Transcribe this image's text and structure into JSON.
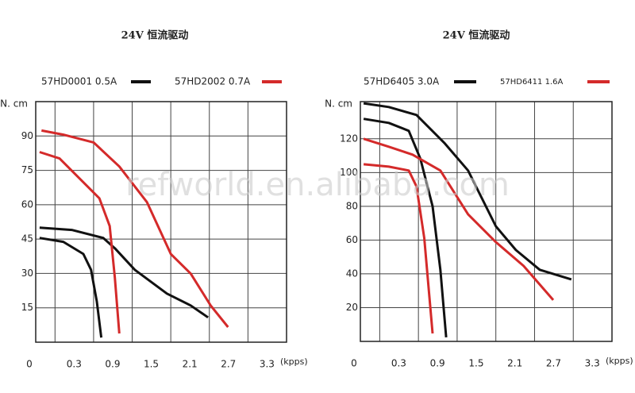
{
  "chart_data": [
    {
      "type": "line",
      "title": "24V 恒流驱动",
      "y_label": "N. cm",
      "x_label": "(kpps)",
      "xlim": [
        0,
        3.9
      ],
      "ylim": [
        0,
        105
      ],
      "xticks": [
        0,
        0.3,
        0.9,
        1.5,
        2.1,
        2.7,
        3.3
      ],
      "yticks": [
        15,
        30,
        45,
        60,
        75,
        90
      ],
      "grid": true,
      "series": [
        {
          "name": "57HD0001 0.5A",
          "color": "#111111",
          "lines": [
            {
              "x": [
                0.06,
                0.56,
                1.05,
                1.23,
                1.54,
                2.04,
                2.41,
                2.68
              ],
              "values": [
                50,
                49,
                45.5,
                41,
                31.6,
                21.2,
                16,
                10.8
              ]
            },
            {
              "x": [
                0.06,
                0.43,
                0.74,
                0.86,
                0.95,
                1.02
              ],
              "values": [
                45.5,
                43.8,
                38.5,
                31.6,
                17.7,
                2
              ]
            }
          ]
        },
        {
          "name": "57HD2002 0.7A",
          "color": "#d42a2a",
          "lines": [
            {
              "x": [
                0.09,
                0.43,
                0.9,
                1.3,
                1.73,
                2.1,
                2.41,
                2.72,
                2.99
              ],
              "values": [
                92.4,
                90.6,
                87.2,
                76.7,
                61.1,
                38.5,
                29.9,
                16,
                6.6
              ]
            },
            {
              "x": [
                0.06,
                0.37,
                0.68,
                0.99,
                1.15,
                1.23,
                1.3
              ],
              "values": [
                83,
                80.2,
                71.5,
                62.8,
                50.7,
                28.1,
                3.8
              ]
            }
          ]
        }
      ]
    },
    {
      "type": "line",
      "title": "24V 恒流驱动",
      "y_label": "N. cm",
      "x_label": "(kpps)",
      "xlim": [
        0,
        3.9
      ],
      "ylim": [
        0,
        142
      ],
      "xticks": [
        0,
        0.3,
        0.9,
        1.5,
        2.1,
        2.7,
        3.3
      ],
      "yticks": [
        20,
        40,
        60,
        80,
        100,
        120
      ],
      "grid": true,
      "series": [
        {
          "name": "57HD6405 3.0A",
          "color": "#111111",
          "lines": [
            {
              "x": [
                0.05,
                0.44,
                0.87,
                1.3,
                1.67,
                2.1,
                2.41,
                2.78,
                3.27
              ],
              "values": [
                141,
                138.8,
                134.1,
                117.6,
                101.2,
                68.2,
                54.1,
                42.4,
                36.7
              ]
            },
            {
              "x": [
                0.05,
                0.44,
                0.75,
                0.93,
                1.12,
                1.24,
                1.33
              ],
              "values": [
                131.8,
                129.4,
                124.7,
                108.2,
                80,
                42.4,
                2.4
              ]
            }
          ]
        },
        {
          "name": "57HD6411 1.6A",
          "color": "#d42a2a",
          "lines": [
            {
              "x": [
                0.05,
                0.44,
                0.81,
                1.24,
                1.67,
                2.1,
                2.53,
                2.99
              ],
              "values": [
                120,
                115.3,
                110.6,
                101.2,
                75.3,
                58.8,
                44.7,
                24.5
              ]
            },
            {
              "x": [
                0.05,
                0.44,
                0.75,
                0.87,
                0.99,
                1.12
              ],
              "values": [
                104.9,
                103.5,
                101.2,
                91.8,
                61.2,
                4.7
              ]
            }
          ]
        }
      ]
    }
  ],
  "watermark": "refworld.en.alibaba.com"
}
